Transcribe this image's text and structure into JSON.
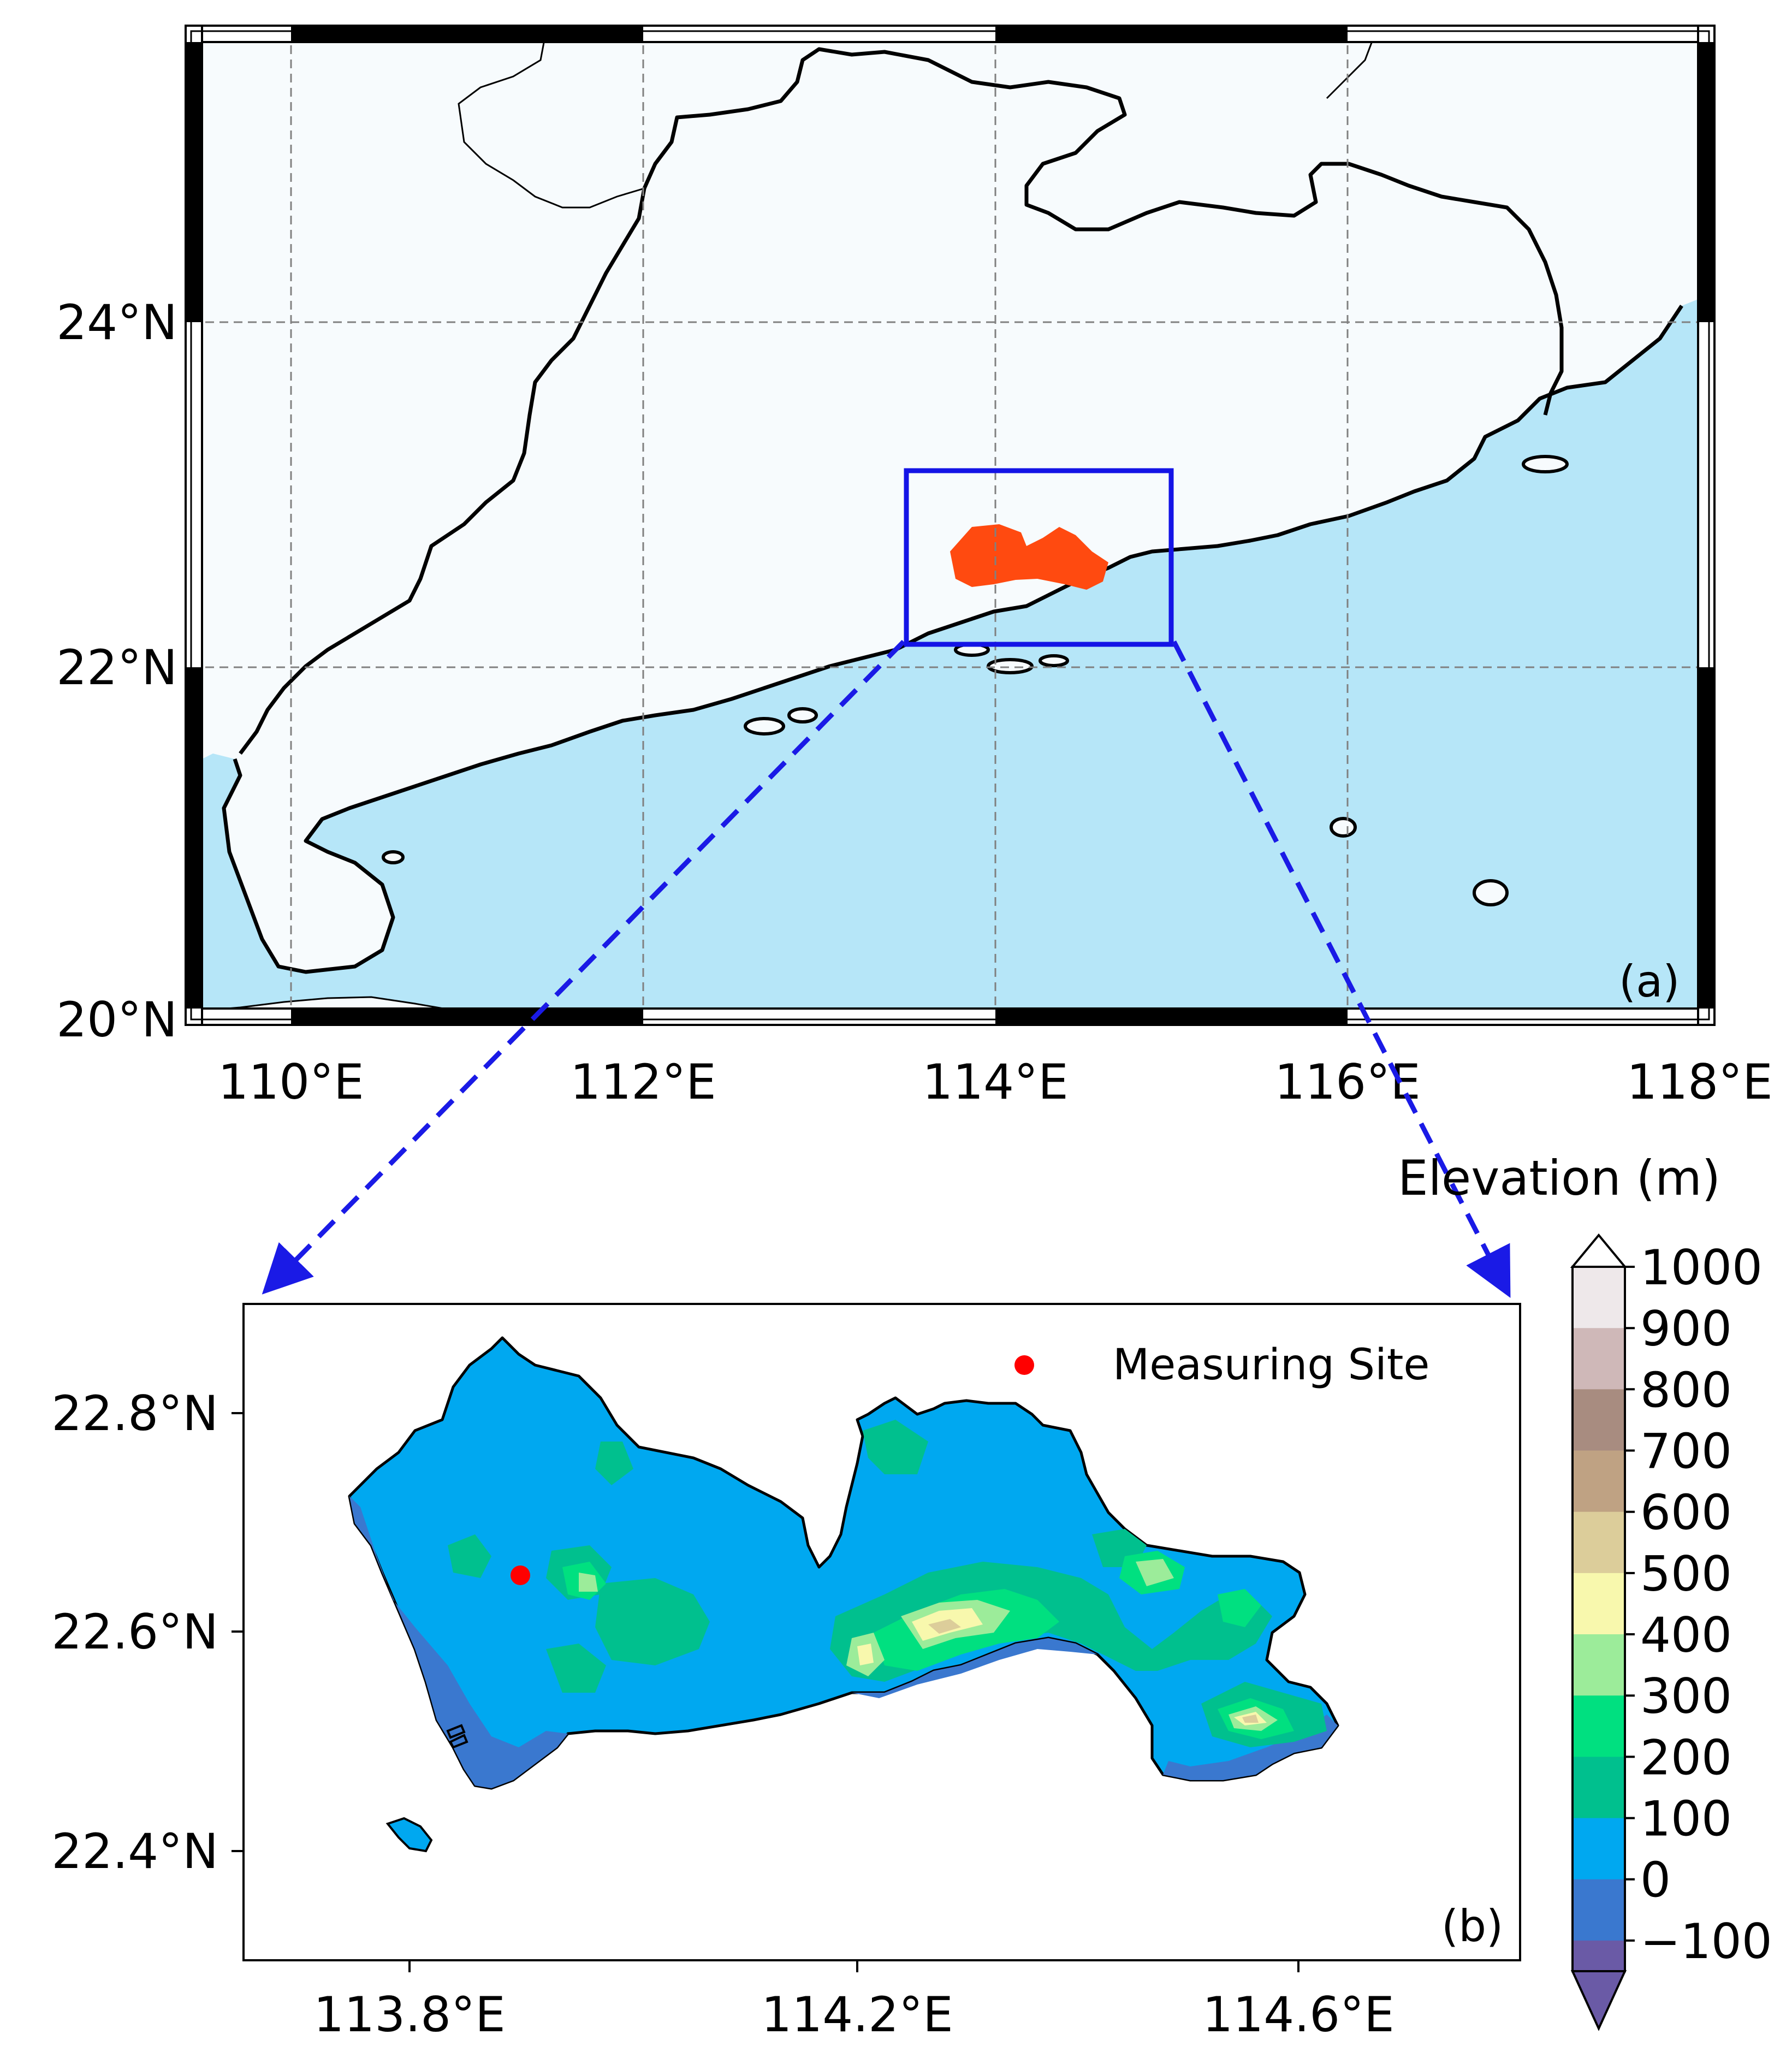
{
  "map_a": {
    "panel_label": "(a)",
    "lon_ticks": [
      "110°E",
      "112°E",
      "114°E",
      "116°E",
      "118°E"
    ],
    "lat_ticks": [
      "24°N",
      "22°N",
      "20°N"
    ],
    "land_color": "#f7fbfd",
    "sea_color": "#b6e6f8",
    "highlight_color": "#ff4a10",
    "inset_box_color": "#1414e6"
  },
  "map_b": {
    "panel_label": "(b)",
    "lon_ticks": [
      "113.8°E",
      "114.2°E",
      "114.6°E"
    ],
    "lat_ticks": [
      "22.8°N",
      "22.6°N",
      "22.4°N"
    ],
    "legend_label": "Measuring Site",
    "site_color": "#ff0000"
  },
  "colorbar": {
    "title": "Elevation (m)",
    "ticks": [
      "1000",
      "900",
      "800",
      "700",
      "600",
      "500",
      "400",
      "300",
      "200",
      "100",
      "0",
      "−100"
    ],
    "colors": [
      "#eee8ea",
      "#cfb8b8",
      "#a88c80",
      "#bfa283",
      "#dccd9a",
      "#f8f8ad",
      "#9cec9a",
      "#00e080",
      "#00c08e",
      "#00a8f0",
      "#3a78cf",
      "#6a5aa6"
    ]
  }
}
